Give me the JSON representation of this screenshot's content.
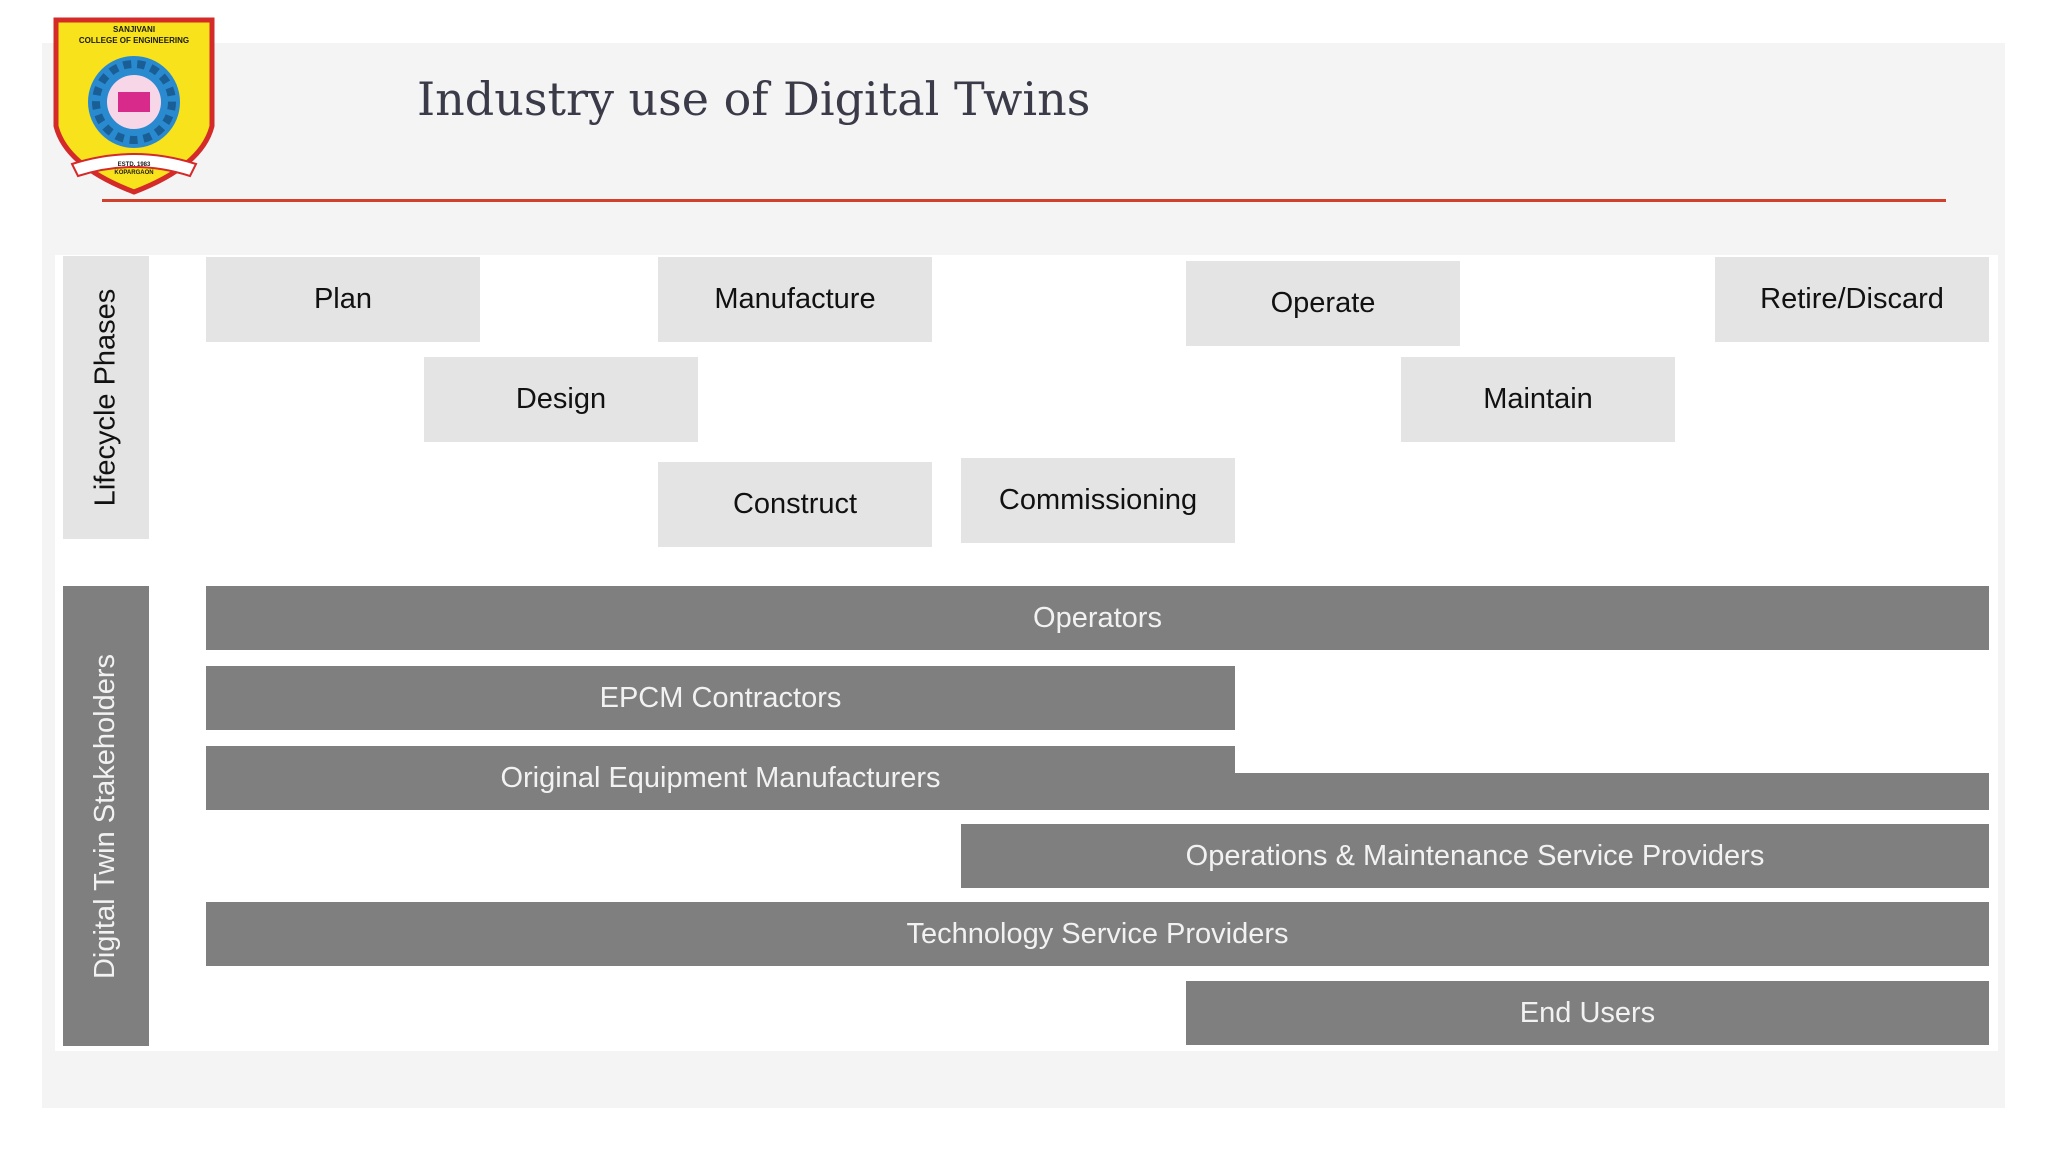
{
  "header": {
    "title": "Industry use of Digital Twins",
    "logo": {
      "name_line1": "SANJIVANI",
      "name_line2": "COLLEGE OF ENGINEERING",
      "established": "ESTD. 1983",
      "place": "KOPARGAON"
    }
  },
  "lifecycle": {
    "label": "Lifecycle Phases",
    "phases": [
      "Plan",
      "Manufacture",
      "Operate",
      "Retire/Discard",
      "Design",
      "Maintain",
      "Construct",
      "Commissioning"
    ]
  },
  "stakeholders": {
    "label": "Digital Twin Stakeholders",
    "groups": [
      "Operators",
      "EPCM Contractors",
      "Original Equipment Manufacturers",
      "Operations & Maintenance Service Providers",
      "Technology Service Providers",
      "End Users"
    ]
  }
}
